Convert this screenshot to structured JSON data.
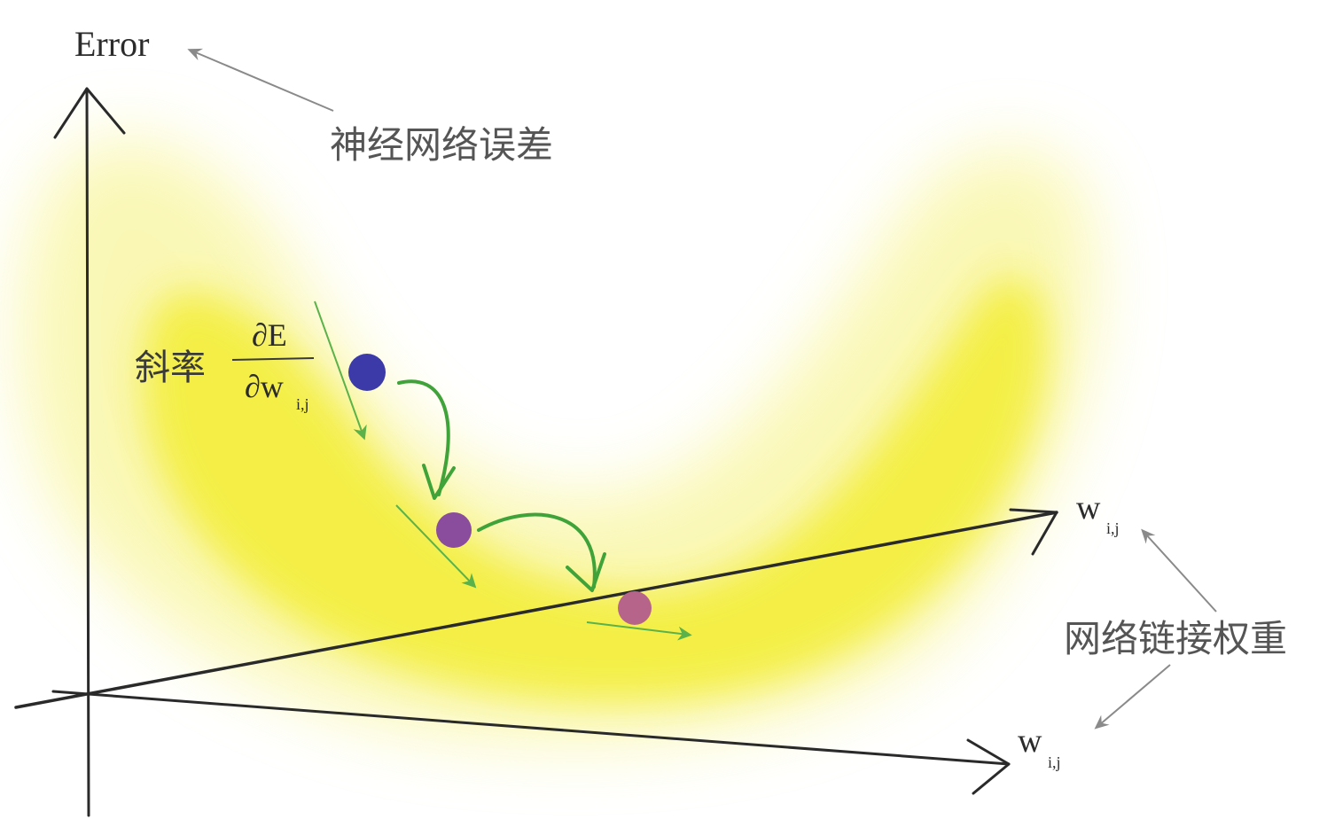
{
  "labels": {
    "error_axis": "Error",
    "network_error": "神经网络误差",
    "slope": "斜率",
    "partial_numerator": "∂E",
    "partial_denominator": "∂w",
    "partial_subscript": "i,j",
    "weight_axis_1": "w",
    "weight_axis_1_sub": "i,j",
    "weight_axis_2": "w",
    "weight_axis_2_sub": "i,j",
    "link_weights": "网络链接权重"
  },
  "colors": {
    "surface_glow": "#f5f03a",
    "surface_core": "#f2ec22",
    "axis": "#2a2a2a",
    "pointer_arrow": "#8a8a8a",
    "step_arrow": "#3fa33a",
    "gradient_arrow": "#5bb24a",
    "ball_1": "#3b3aa8",
    "ball_2": "#8a4c9c",
    "ball_3": "#b7648a"
  }
}
